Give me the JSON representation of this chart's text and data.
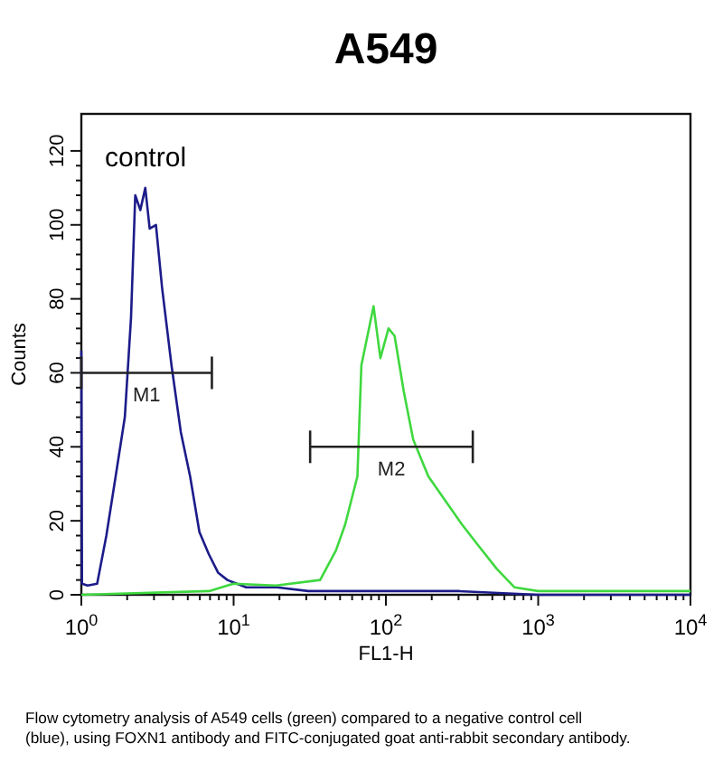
{
  "chart_data": {
    "type": "line",
    "title": "A549",
    "xlabel": "FL1-H",
    "ylabel": "Counts",
    "log": "x",
    "xlim": [
      1,
      10000
    ],
    "xticks": [
      {
        "value": 1,
        "label": "10$^{0}$"
      },
      {
        "value": 10,
        "label": "10$^{1}$"
      },
      {
        "value": 100,
        "label": "10$^{2}$"
      },
      {
        "value": 1000,
        "label": "10$^{3}$"
      },
      {
        "value": 10000,
        "label": "10$^{4}$"
      }
    ],
    "ylim": [
      0,
      130
    ],
    "yticks": [
      0,
      20,
      40,
      60,
      80,
      100,
      120
    ],
    "grid": false,
    "marker": "none",
    "line_style": "solid",
    "series": [
      {
        "color": "#1c1c8a",
        "x": [
          1,
          1.01,
          1.1,
          1.27,
          1.46,
          1.68,
          1.93,
          2.12,
          2.26,
          2.44,
          2.63,
          2.81,
          3.09,
          3.39,
          3.91,
          4.5,
          5.18,
          5.96,
          6.87,
          7.9,
          9.1,
          12.1,
          19.3,
          30.9,
          60,
          150,
          300,
          1000,
          10000
        ],
        "values": [
          66,
          3,
          2.5,
          3,
          16,
          32,
          48,
          75,
          108,
          104,
          110,
          99,
          100,
          83,
          62,
          44,
          32,
          17,
          11,
          6,
          4,
          2,
          2,
          1,
          1,
          1,
          1,
          0,
          0
        ]
      },
      {
        "color": "#3fd83f",
        "x": [
          1,
          6.9,
          10,
          19,
          37,
          47,
          54,
          65,
          69,
          83,
          92,
          104,
          114,
          131,
          151,
          190,
          240,
          316,
          410,
          535,
          700,
          1000,
          10000
        ],
        "values": [
          0,
          1,
          3,
          2.5,
          4,
          12,
          19,
          32,
          62,
          78,
          64,
          72,
          70,
          55,
          42,
          32,
          26,
          19,
          13,
          7,
          2,
          1,
          1
        ]
      },
      {
        "name": "M1",
        "color": "#222222",
        "x": [
          1,
          7.2
        ],
        "values": [
          60,
          60
        ]
      },
      {
        "name": "M2",
        "color": "#222222",
        "x": [
          31.8,
          372
        ],
        "values": [
          40,
          40
        ]
      }
    ],
    "annotations": [
      "control",
      "Flow cytometry analysis of A549 cells (green) compared to a negative control cell (blue), using FOXN1 antibody and FITC-conjugated goat anti-rabbit secondary antibody."
    ]
  }
}
